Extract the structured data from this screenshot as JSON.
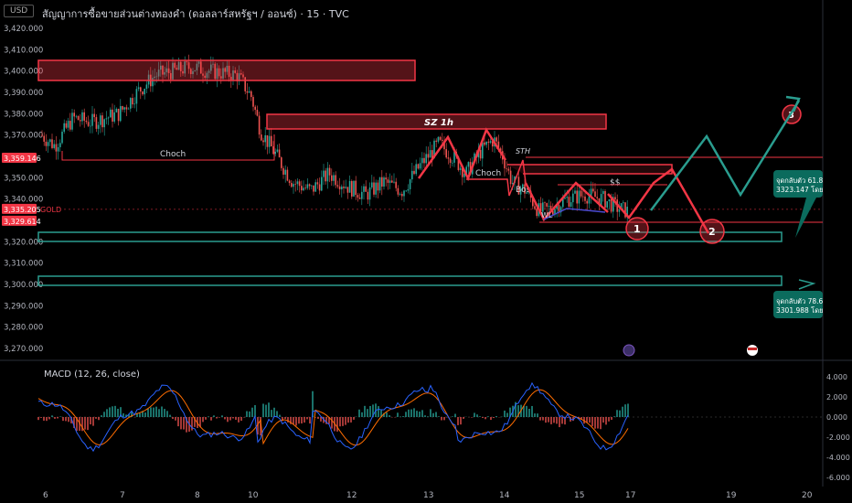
{
  "header": {
    "currency": "USD",
    "title": "สัญญาการซื้อขายส่วนต่างทองคำ (ดอลลาร์สหรัฐฯ / ออนซ์) · 15 · TVC"
  },
  "price_axis": {
    "ticks": [
      "3,420.000",
      "3,410.000",
      "3,400.000",
      "3,390.000",
      "3,380.000",
      "3,370.000",
      "3,350.000",
      "3,340.000",
      "3,320.000",
      "3,310.000",
      "3,300.000",
      "3,290.000",
      "3,280.000",
      "3,270.000"
    ],
    "markers": [
      {
        "label": "3,359.146",
        "color": "#f23645"
      },
      {
        "label": "3,335.205",
        "color": "#f23645"
      },
      {
        "label": "3,329.614",
        "color": "#f23645"
      }
    ],
    "symbol_tag": "GOLD"
  },
  "macd": {
    "label": "MACD (12, 26, close)",
    "ticks": [
      "4.000",
      "2.000",
      "0.000",
      "-2.000",
      "-4.000",
      "-6.000"
    ]
  },
  "x_axis": {
    "ticks": [
      "6",
      "7",
      "8",
      "10",
      "12",
      "13",
      "14",
      "15",
      "17",
      "19",
      "20"
    ]
  },
  "annotations": {
    "choch_left": "Choch",
    "choch_mid": "Choch",
    "sz": "SZ 1h",
    "sth": "STH",
    "bos": "Bos",
    "ss": "$$",
    "wl": "WL",
    "n1": "1",
    "n2": "2",
    "n3": "3",
    "fib1_line1": "จุดกลับตัว 61.8",
    "fib1_line2": "3323.147 โดย",
    "fib2_line1": "จุดกลับตัว 78.6",
    "fib2_line2": "3301.988 โดย"
  },
  "colors": {
    "up": "#26a69a",
    "down": "#ef5350",
    "zone_red": "#f23645",
    "zone_teal": "#2a9d8f",
    "macd_line": "#2962ff",
    "signal_line": "#ff6d00"
  },
  "chart_data": {
    "type": "candlestick",
    "symbol": "GOLD",
    "y_range": [
      3265,
      3425
    ],
    "x_labels": [
      "6",
      "7",
      "8",
      "10",
      "12",
      "13",
      "14",
      "15",
      "17",
      "19",
      "20"
    ],
    "price_path": [
      {
        "x": "6",
        "close": 3370
      },
      {
        "x": "7",
        "close": 3377
      },
      {
        "x": "8",
        "close": 3395
      },
      {
        "x": "10",
        "close": 3395
      },
      {
        "x": "10",
        "close": 3370
      },
      {
        "x": "12",
        "close": 3345
      },
      {
        "x": "13",
        "close": 3360
      },
      {
        "x": "14",
        "close": 3348
      },
      {
        "x": "15",
        "close": 3340
      },
      {
        "x": "17",
        "close": 3335
      }
    ],
    "levels": {
      "last": 3335.205,
      "high_marker": 3359.146,
      "low_marker": 3329.614
    },
    "zones": [
      {
        "name": "resistance",
        "from": 3396,
        "to": 3405
      },
      {
        "name": "SZ 1h",
        "from": 3370,
        "to": 3378
      },
      {
        "name": "support",
        "from": 3320,
        "to": 3325
      },
      {
        "name": "support",
        "from": 3300,
        "to": 3304
      }
    ],
    "macd_range": [
      -6,
      4
    ]
  }
}
